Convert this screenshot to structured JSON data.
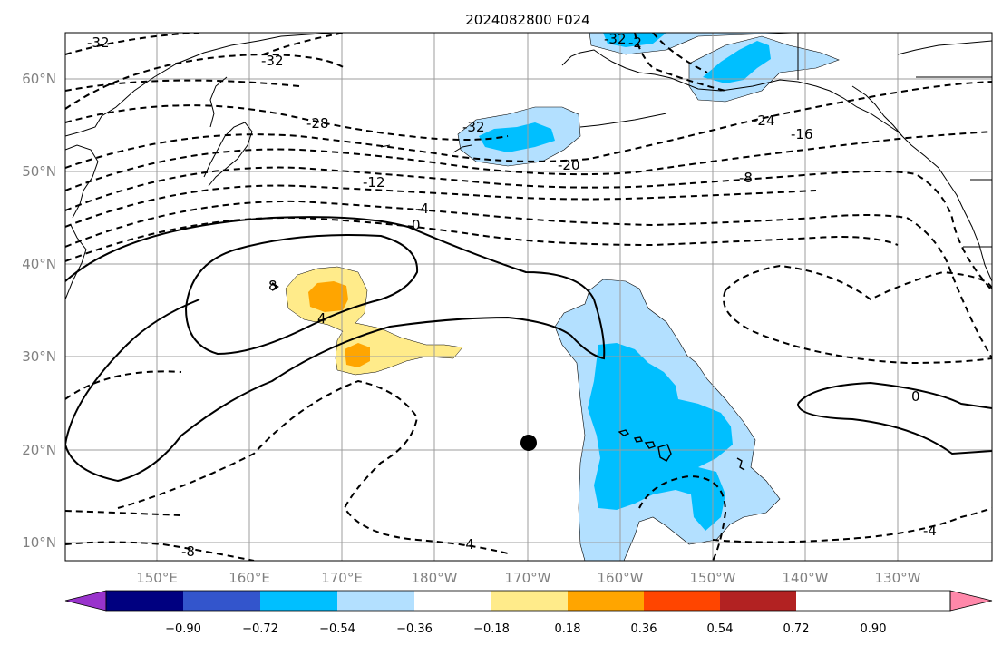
{
  "title": "2024082800 F024",
  "lat_labels": [
    "60°N",
    "50°N",
    "40°N",
    "30°N",
    "20°N",
    "10°N"
  ],
  "lon_labels": [
    "150°E",
    "160°E",
    "170°E",
    "180°W",
    "170°W",
    "160°W",
    "150°W",
    "140°W",
    "130°W"
  ],
  "colorbar": {
    "ticks": [
      "−0.90",
      "−0.72",
      "−0.54",
      "−0.36",
      "−0.18",
      "0.18",
      "0.36",
      "0.54",
      "0.72",
      "0.90"
    ],
    "colors": [
      "#9933cc",
      "#000080",
      "#3355cc",
      "#00bfff",
      "#b3e0ff",
      "#ffffff",
      "#ffeb8a",
      "#ffa500",
      "#ff4500",
      "#b22222",
      "#ff88aa"
    ]
  },
  "contour_labels": {
    "c32a": "-32",
    "c32b": "-32",
    "c28": "-28",
    "c32c": "-32",
    "c32d": "-32",
    "c2": "-2",
    "c24": "-24",
    "c16": "-16",
    "c20": "-20",
    "c12": "-12",
    "c8a": "-8",
    "c4a": "-4",
    "c0a": "0",
    "c8b": "8",
    "c4b": "4",
    "c0b": "0",
    "c4c": "-4",
    "c4d": "-4",
    "c8c": "-8"
  },
  "colors": {
    "light_blue": "#b3e0ff",
    "deep_sky": "#00bfff",
    "gold_light": "#ffeb8a",
    "orange": "#ffa500"
  },
  "marker": {
    "name": "black-dot",
    "lat_lon": "20.8N, 170W"
  }
}
